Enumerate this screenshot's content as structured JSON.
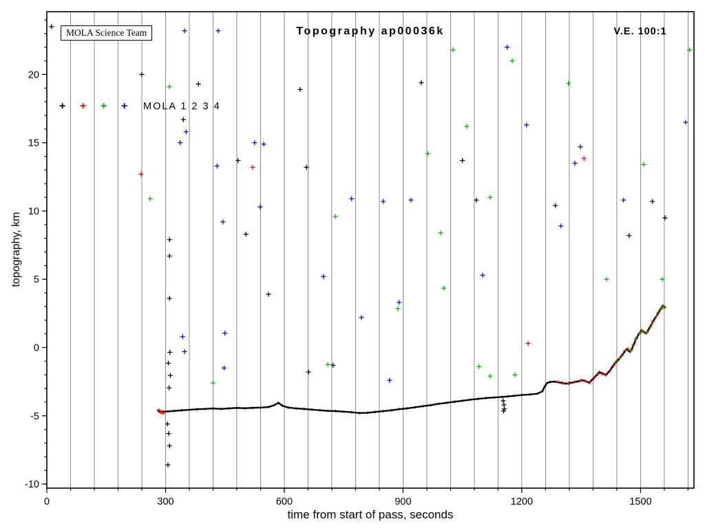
{
  "header": {
    "credit_box": "MOLA Science Team",
    "title": "Topography ap00036k",
    "ve_label": "V.E. 100:1"
  },
  "legend": {
    "label": "MOLA 1 2 3 4",
    "series": [
      {
        "name": "MOLA 1",
        "color": "#000000"
      },
      {
        "name": "MOLA 2",
        "color": "#ff0000"
      },
      {
        "name": "MOLA 3",
        "color": "#00b000"
      },
      {
        "name": "MOLA 4",
        "color": "#0000ff"
      }
    ]
  },
  "axes": {
    "xlabel": "time from start of pass, seconds",
    "ylabel": "topography, km"
  },
  "chart_data": {
    "type": "scatter",
    "title": "Topography ap00036k",
    "xlabel": "time from start of pass, seconds",
    "ylabel": "topography, km",
    "xlim": [
      0,
      1635
    ],
    "ylim": [
      -10.3,
      24.6
    ],
    "x_major_ticks": [
      0,
      300,
      600,
      900,
      1200,
      1500
    ],
    "x_gridline_step": 60,
    "y_major_ticks": [
      -10,
      -5,
      0,
      5,
      10,
      15,
      20
    ],
    "y_minor_step": 1,
    "grid": "vertical-only",
    "legend_position": "inside-top-left",
    "profile": {
      "name": "MOLA 1 ground track",
      "color": "#000000",
      "points": [
        [
          281,
          -4.6
        ],
        [
          284,
          -4.7
        ],
        [
          288,
          -4.72
        ],
        [
          295,
          -4.7
        ],
        [
          305,
          -4.68
        ],
        [
          320,
          -4.65
        ],
        [
          340,
          -4.6
        ],
        [
          360,
          -4.56
        ],
        [
          380,
          -4.52
        ],
        [
          400,
          -4.5
        ],
        [
          420,
          -4.46
        ],
        [
          440,
          -4.5
        ],
        [
          460,
          -4.46
        ],
        [
          480,
          -4.42
        ],
        [
          500,
          -4.45
        ],
        [
          520,
          -4.42
        ],
        [
          540,
          -4.4
        ],
        [
          560,
          -4.36
        ],
        [
          575,
          -4.22
        ],
        [
          585,
          -4.05
        ],
        [
          595,
          -4.26
        ],
        [
          610,
          -4.4
        ],
        [
          630,
          -4.46
        ],
        [
          650,
          -4.5
        ],
        [
          670,
          -4.55
        ],
        [
          690,
          -4.6
        ],
        [
          710,
          -4.64
        ],
        [
          730,
          -4.66
        ],
        [
          750,
          -4.7
        ],
        [
          770,
          -4.74
        ],
        [
          790,
          -4.8
        ],
        [
          810,
          -4.78
        ],
        [
          830,
          -4.72
        ],
        [
          850,
          -4.66
        ],
        [
          870,
          -4.6
        ],
        [
          890,
          -4.52
        ],
        [
          910,
          -4.46
        ],
        [
          930,
          -4.38
        ],
        [
          950,
          -4.3
        ],
        [
          970,
          -4.22
        ],
        [
          990,
          -4.12
        ],
        [
          1010,
          -4.05
        ],
        [
          1030,
          -3.97
        ],
        [
          1050,
          -3.9
        ],
        [
          1070,
          -3.82
        ],
        [
          1090,
          -3.76
        ],
        [
          1110,
          -3.7
        ],
        [
          1130,
          -3.66
        ],
        [
          1150,
          -3.62
        ],
        [
          1165,
          -3.58
        ],
        [
          1180,
          -3.54
        ],
        [
          1200,
          -3.48
        ],
        [
          1220,
          -3.44
        ],
        [
          1240,
          -3.38
        ],
        [
          1252,
          -3.2
        ],
        [
          1258,
          -2.85
        ],
        [
          1264,
          -2.6
        ],
        [
          1272,
          -2.52
        ],
        [
          1282,
          -2.5
        ],
        [
          1292,
          -2.54
        ],
        [
          1302,
          -2.6
        ],
        [
          1312,
          -2.64
        ],
        [
          1322,
          -2.6
        ],
        [
          1332,
          -2.54
        ],
        [
          1342,
          -2.48
        ],
        [
          1352,
          -2.4
        ],
        [
          1360,
          -2.44
        ],
        [
          1370,
          -2.58
        ],
        [
          1378,
          -2.35
        ],
        [
          1388,
          -2.05
        ],
        [
          1396,
          -1.8
        ],
        [
          1404,
          -1.9
        ],
        [
          1412,
          -2.02
        ],
        [
          1420,
          -1.78
        ],
        [
          1428,
          -1.45
        ],
        [
          1436,
          -1.15
        ],
        [
          1444,
          -0.9
        ],
        [
          1452,
          -0.62
        ],
        [
          1460,
          -0.3
        ],
        [
          1466,
          -0.12
        ],
        [
          1472,
          -0.3
        ],
        [
          1478,
          -0.1
        ],
        [
          1484,
          0.3
        ],
        [
          1490,
          0.7
        ],
        [
          1496,
          1.0
        ],
        [
          1502,
          1.25
        ],
        [
          1508,
          1.15
        ],
        [
          1514,
          1.05
        ],
        [
          1520,
          1.3
        ],
        [
          1526,
          1.6
        ],
        [
          1532,
          1.95
        ],
        [
          1538,
          2.2
        ],
        [
          1544,
          2.5
        ],
        [
          1550,
          2.8
        ],
        [
          1556,
          3.05
        ],
        [
          1562,
          2.95
        ]
      ]
    },
    "overlays": [
      {
        "name": "MOLA 2 track returns",
        "color": "#ff0000",
        "points": [
          [
            284,
            -4.6
          ],
          [
            287,
            -4.76
          ],
          [
            291,
            -4.7
          ],
          [
            294,
            -4.83
          ],
          [
            1292,
            -2.52
          ],
          [
            1305,
            -2.6
          ],
          [
            1318,
            -2.62
          ],
          [
            1332,
            -2.53
          ],
          [
            1347,
            -2.42
          ],
          [
            1360,
            -2.45
          ],
          [
            1372,
            -2.55
          ],
          [
            1382,
            -2.25
          ],
          [
            1392,
            -1.95
          ],
          [
            1402,
            -1.92
          ],
          [
            1412,
            -2.0
          ],
          [
            1422,
            -1.72
          ],
          [
            1432,
            -1.3
          ],
          [
            1442,
            -0.95
          ],
          [
            1452,
            -0.6
          ],
          [
            1461,
            -0.25
          ],
          [
            1468,
            -0.1
          ],
          [
            1475,
            -0.28
          ],
          [
            1482,
            0.2
          ],
          [
            1489,
            0.65
          ],
          [
            1496,
            1.0
          ],
          [
            1503,
            1.22
          ],
          [
            1510,
            1.1
          ],
          [
            1517,
            1.15
          ],
          [
            1524,
            1.5
          ],
          [
            1531,
            1.9
          ],
          [
            1538,
            2.2
          ],
          [
            1545,
            2.55
          ],
          [
            1552,
            2.85
          ],
          [
            1558,
            3.0
          ]
        ]
      },
      {
        "name": "MOLA 3 track returns",
        "color": "#00b000",
        "points": [
          [
            1436,
            -1.1
          ],
          [
            1448,
            -0.75
          ],
          [
            1462,
            -0.2
          ],
          [
            1476,
            -0.2
          ],
          [
            1488,
            0.6
          ],
          [
            1498,
            1.05
          ],
          [
            1506,
            1.2
          ],
          [
            1516,
            1.1
          ],
          [
            1528,
            1.7
          ],
          [
            1540,
            2.3
          ],
          [
            1550,
            2.75
          ],
          [
            1558,
            2.95
          ]
        ]
      }
    ],
    "noise_points": [
      {
        "name": "MOLA 1 false returns",
        "color": "#000000",
        "points": [
          [
            12,
            23.5
          ],
          [
            240,
            20.0
          ],
          [
            310,
            7.9
          ],
          [
            310,
            6.7
          ],
          [
            310,
            3.6
          ],
          [
            311,
            -0.35
          ],
          [
            307,
            -1.15
          ],
          [
            312,
            -2.05
          ],
          [
            309,
            -2.95
          ],
          [
            305,
            -5.6
          ],
          [
            308,
            -6.3
          ],
          [
            310,
            -7.2
          ],
          [
            306,
            -8.6
          ],
          [
            383,
            19.3
          ],
          [
            345,
            16.7
          ],
          [
            483,
            13.7
          ],
          [
            503,
            8.3
          ],
          [
            560,
            3.9
          ],
          [
            640,
            18.9
          ],
          [
            656,
            13.2
          ],
          [
            661,
            -1.8
          ],
          [
            723,
            -1.3
          ],
          [
            946,
            19.4
          ],
          [
            1050,
            13.7
          ],
          [
            1085,
            10.8
          ],
          [
            1153,
            -3.9
          ],
          [
            1155,
            -4.2
          ],
          [
            1156,
            -4.5
          ],
          [
            1154,
            -4.65
          ],
          [
            1285,
            10.4
          ],
          [
            1471,
            8.2
          ],
          [
            1530,
            10.7
          ],
          [
            1562,
            9.5
          ]
        ]
      },
      {
        "name": "MOLA 2 false returns",
        "color": "#ff0000",
        "points": [
          [
            238,
            12.7
          ],
          [
            520,
            13.2
          ],
          [
            1216,
            0.3
          ],
          [
            1357,
            13.85
          ]
        ]
      },
      {
        "name": "MOLA 3 false returns",
        "color": "#00b000",
        "points": [
          [
            261,
            10.9
          ],
          [
            310,
            19.1
          ],
          [
            420,
            -2.6
          ],
          [
            710,
            -1.25
          ],
          [
            729,
            9.6
          ],
          [
            887,
            2.85
          ],
          [
            963,
            14.2
          ],
          [
            995,
            8.4
          ],
          [
            1003,
            4.35
          ],
          [
            1026,
            21.8
          ],
          [
            1061,
            16.2
          ],
          [
            1092,
            -1.4
          ],
          [
            1120,
            11.0
          ],
          [
            1120,
            -2.1
          ],
          [
            1176,
            21.0
          ],
          [
            1183,
            -2.0
          ],
          [
            1318,
            19.35
          ],
          [
            1414,
            5.0
          ],
          [
            1508,
            13.4
          ],
          [
            1555,
            5.0
          ],
          [
            1624,
            21.8
          ]
        ]
      },
      {
        "name": "MOLA 4 false returns",
        "color": "#0000ff",
        "points": [
          [
            348,
            23.2
          ],
          [
            433,
            23.2
          ],
          [
            337,
            15.0
          ],
          [
            352,
            15.8
          ],
          [
            343,
            0.8
          ],
          [
            348,
            -0.3
          ],
          [
            430,
            13.3
          ],
          [
            445,
            9.2
          ],
          [
            450,
            1.05
          ],
          [
            448,
            -1.5
          ],
          [
            525,
            15.0
          ],
          [
            548,
            14.9
          ],
          [
            539,
            10.3
          ],
          [
            699,
            5.2
          ],
          [
            770,
            10.9
          ],
          [
            795,
            2.2
          ],
          [
            850,
            10.7
          ],
          [
            866,
            -2.4
          ],
          [
            890,
            3.3
          ],
          [
            920,
            10.8
          ],
          [
            1101,
            5.3
          ],
          [
            1163,
            22.0
          ],
          [
            1212,
            16.3
          ],
          [
            1299,
            8.9
          ],
          [
            1334,
            13.5
          ],
          [
            1348,
            14.7
          ],
          [
            1457,
            10.8
          ],
          [
            1614,
            16.5
          ]
        ]
      }
    ]
  }
}
